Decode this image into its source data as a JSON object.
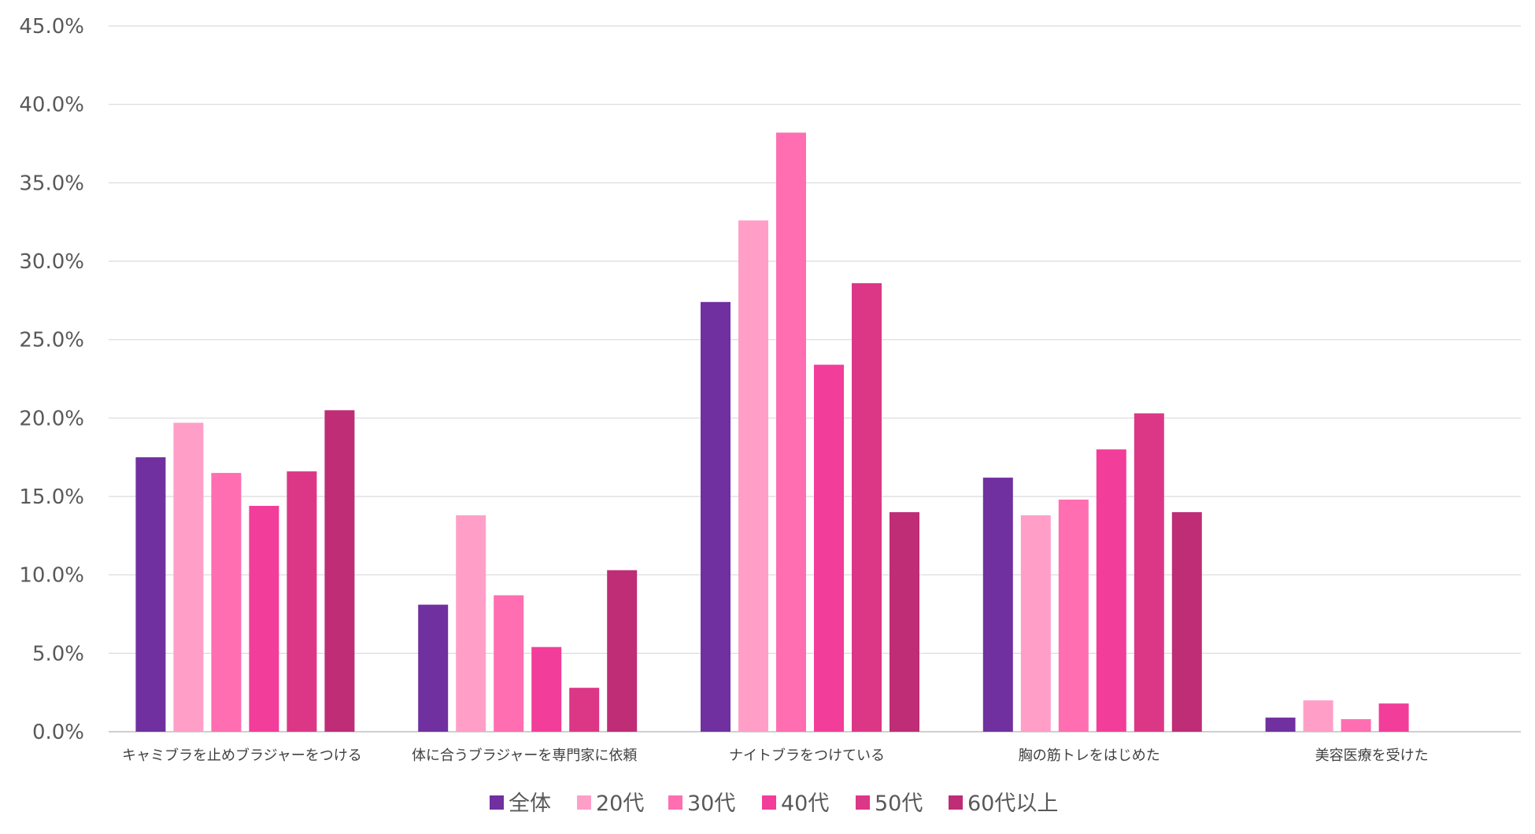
{
  "chart_data": {
    "type": "bar",
    "title": "",
    "xlabel": "",
    "ylabel": "",
    "ylim": [
      0,
      45
    ],
    "yticks": [
      "0.0%",
      "5.0%",
      "10.0%",
      "15.0%",
      "20.0%",
      "25.0%",
      "30.0%",
      "35.0%",
      "40.0%",
      "45.0%"
    ],
    "grid": true,
    "legend_position": "bottom",
    "categories": [
      "キャミブラを止めブラジャーをつける",
      "体に合うブラジャーを専門家に依頼",
      "ナイトブラをつけている",
      "胸の筋トレをはじめた",
      "美容医療を受けた"
    ],
    "series": [
      {
        "name": "全体",
        "color": "#7030a0",
        "values": [
          17.5,
          8.1,
          27.4,
          16.2,
          0.9
        ]
      },
      {
        "name": "20代",
        "color": "#ff9fc8",
        "values": [
          19.7,
          13.8,
          32.6,
          13.8,
          2.0
        ]
      },
      {
        "name": "30代",
        "color": "#ff6eb0",
        "values": [
          16.5,
          8.7,
          38.2,
          14.8,
          0.8
        ]
      },
      {
        "name": "40代",
        "color": "#f23d9a",
        "values": [
          14.4,
          5.4,
          23.4,
          18.0,
          1.8
        ]
      },
      {
        "name": "50代",
        "color": "#dc3787",
        "values": [
          16.6,
          2.8,
          28.6,
          20.3,
          0.0
        ]
      },
      {
        "name": "60代以上",
        "color": "#be2d76",
        "values": [
          20.5,
          10.3,
          14.0,
          14.0,
          0.0
        ]
      }
    ]
  }
}
